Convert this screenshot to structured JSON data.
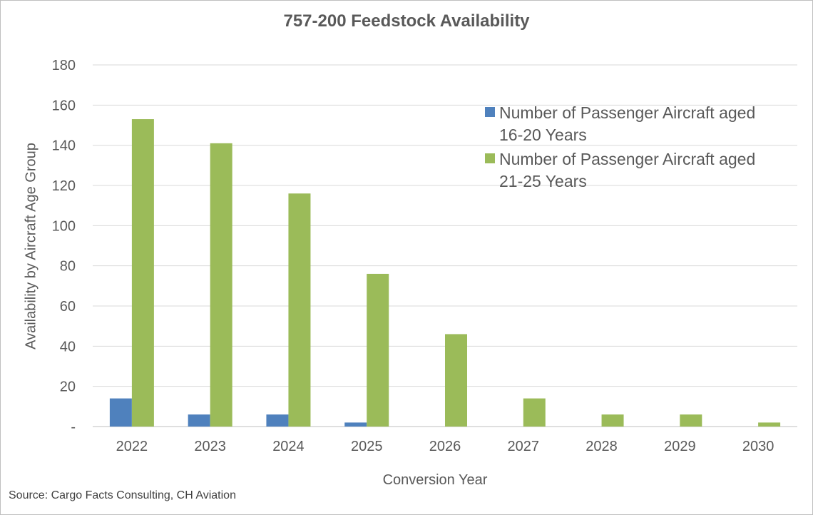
{
  "chart_data": {
    "type": "bar",
    "title": "757-200 Feedstock Availability",
    "xlabel": "Conversion Year",
    "ylabel": "Availability by Aircraft Age Group",
    "categories": [
      "2022",
      "2023",
      "2024",
      "2025",
      "2026",
      "2027",
      "2028",
      "2029",
      "2030"
    ],
    "series": [
      {
        "name": "Number of Passenger Aircraft aged 16-20 Years",
        "color": "#4f81bd",
        "values": [
          14,
          6,
          6,
          2,
          0,
          0,
          0,
          0,
          0
        ]
      },
      {
        "name": "Number of Passenger Aircraft aged 21-25 Years",
        "color": "#9bbb59",
        "values": [
          153,
          141,
          116,
          76,
          46,
          14,
          6,
          6,
          2
        ]
      }
    ],
    "ylim": [
      0,
      180
    ],
    "yticks": [
      "-",
      "20",
      "40",
      "60",
      "80",
      "100",
      "120",
      "140",
      "160",
      "180"
    ],
    "grid": true,
    "legend_position": "top-right"
  },
  "source": "Source: Cargo Facts Consulting, CH Aviation"
}
